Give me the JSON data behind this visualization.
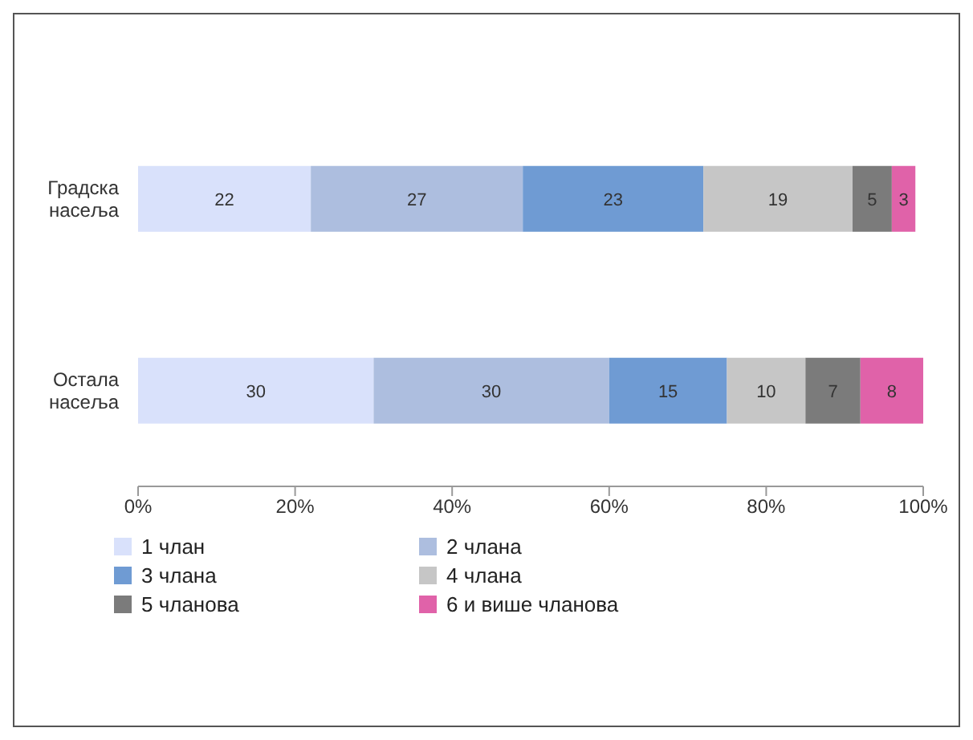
{
  "chart_data": {
    "type": "bar",
    "orientation": "horizontal",
    "stacked": true,
    "categories": [
      "Градска насеља",
      "Остала насеља"
    ],
    "series": [
      {
        "name": "1 члан",
        "color": "#d9e1fb",
        "values": [
          22,
          30
        ]
      },
      {
        "name": "2 члана",
        "color": "#adbedf",
        "values": [
          27,
          30
        ]
      },
      {
        "name": "3 члана",
        "color": "#6f9bd3",
        "values": [
          23,
          15
        ]
      },
      {
        "name": "4 члана",
        "color": "#c6c6c6",
        "values": [
          19,
          10
        ]
      },
      {
        "name": "5 чланова",
        "color": "#7b7b7b",
        "values": [
          5,
          7
        ]
      },
      {
        "name": "6 и више чланова",
        "color": "#e062a9",
        "values": [
          3,
          8
        ]
      }
    ],
    "xlim": [
      0,
      100
    ],
    "xticks": [
      {
        "value": 0,
        "label": "0%"
      },
      {
        "value": 20,
        "label": "20%"
      },
      {
        "value": 40,
        "label": "40%"
      },
      {
        "value": 60,
        "label": "60%"
      },
      {
        "value": 80,
        "label": "80%"
      },
      {
        "value": 100,
        "label": "100%"
      }
    ],
    "data_labels": true,
    "legend": "bottom",
    "grid": false
  }
}
